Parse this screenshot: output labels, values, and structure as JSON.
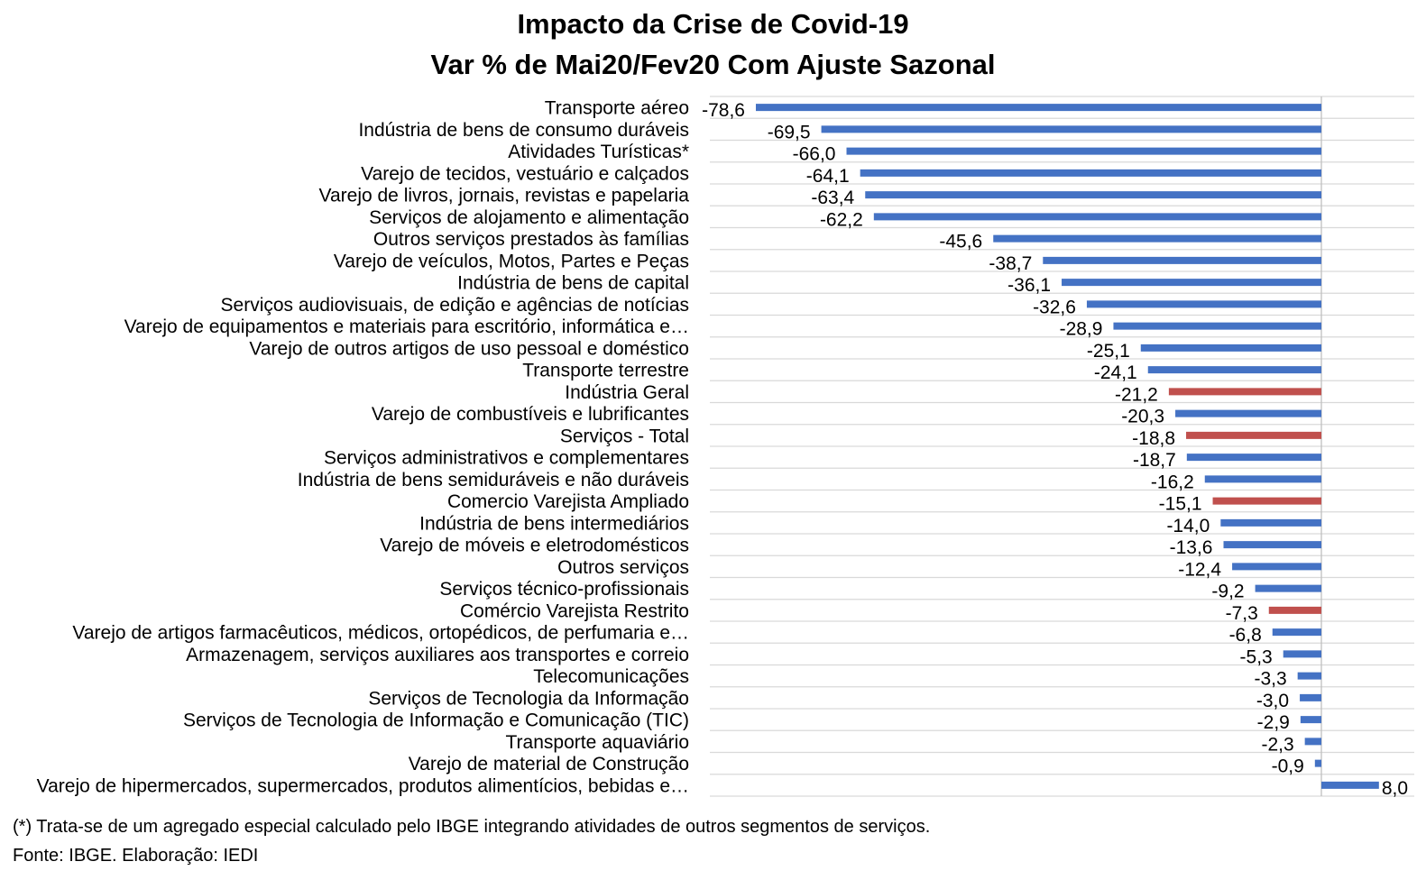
{
  "colors": {
    "default_bar": "#4472C4",
    "highlight_bar": "#C0504D",
    "gridline": "#D9D9D9",
    "axis": "#BFBFBF"
  },
  "chart_data": {
    "type": "bar",
    "orientation": "horizontal",
    "title": "Impacto da Crise de Covid-19",
    "subtitle": "Var % de Mai20/Fev20 Com Ajuste Sazonal",
    "xlabel": "",
    "ylabel": "",
    "xlim": [
      -80,
      12
    ],
    "grid": true,
    "legend": "none",
    "categories": [
      "Transporte aéreo",
      "Indústria de bens de consumo duráveis",
      "Atividades Turísticas*",
      "Varejo de tecidos, vestuário e calçados",
      "Varejo de livros, jornais, revistas e papelaria",
      "Serviços de alojamento e alimentação",
      "Outros serviços prestados às famílias",
      "Varejo de veículos, Motos, Partes e Peças",
      "Indústria de bens de capital",
      "Serviços audiovisuais, de edição e agências de notícias",
      "Varejo de equipamentos e materiais para escritório, informática e…",
      "Varejo de outros artigos de uso pessoal e doméstico",
      "Transporte terrestre",
      "Indústria Geral",
      "Varejo de combustíveis e lubrificantes",
      "Serviços - Total",
      "Serviços administrativos e complementares",
      "Indústria de bens semiduráveis e não duráveis",
      "Comercio Varejista Ampliado",
      "Indústria de bens intermediários",
      "Varejo de móveis e eletrodomésticos",
      "Outros serviços",
      "Serviços técnico-profissionais",
      "Comércio Varejista Restrito",
      "Varejo de artigos farmacêuticos, médicos, ortopédicos, de perfumaria e…",
      "Armazenagem, serviços auxiliares aos transportes e correio",
      "Telecomunicações",
      "Serviços de Tecnologia da Informação",
      "Serviços de Tecnologia de Informação e Comunicação (TIC)",
      "Transporte aquaviário",
      "Varejo de material de Construção",
      "Varejo de hipermercados, supermercados, produtos alimentícios, bebidas e…"
    ],
    "values": [
      -78.6,
      -69.5,
      -66.0,
      -64.1,
      -63.4,
      -62.2,
      -45.6,
      -38.7,
      -36.1,
      -32.6,
      -28.9,
      -25.1,
      -24.1,
      -21.2,
      -20.3,
      -18.8,
      -18.7,
      -16.2,
      -15.1,
      -14.0,
      -13.6,
      -12.4,
      -9.2,
      -7.3,
      -6.8,
      -5.3,
      -3.3,
      -3.0,
      -2.9,
      -2.3,
      -0.9,
      8.0
    ],
    "data_labels": [
      "-78,6",
      "-69,5",
      "-66,0",
      "-64,1",
      "-63,4",
      "-62,2",
      "-45,6",
      "-38,7",
      "-36,1",
      "-32,6",
      "-28,9",
      "-25,1",
      "-24,1",
      "-21,2",
      "-20,3",
      "-18,8",
      "-18,7",
      "-16,2",
      "-15,1",
      "-14,0",
      "-13,6",
      "-12,4",
      "-9,2",
      "-7,3",
      "-6,8",
      "-5,3",
      "-3,3",
      "-3,0",
      "-2,9",
      "-2,3",
      "-0,9",
      "8,0"
    ],
    "highlighted": [
      false,
      false,
      false,
      false,
      false,
      false,
      false,
      false,
      false,
      false,
      false,
      false,
      false,
      true,
      false,
      true,
      false,
      false,
      true,
      false,
      false,
      false,
      false,
      true,
      false,
      false,
      false,
      false,
      false,
      false,
      false,
      false
    ]
  },
  "footnotes": {
    "note": "(*) Trata-se de um agregado especial calculado pelo IBGE integrando atividades de outros segmentos de serviços.",
    "source": "Fonte: IBGE. Elaboração: IEDI"
  }
}
